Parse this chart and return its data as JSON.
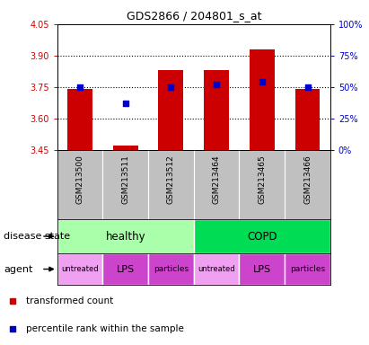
{
  "title": "GDS2866 / 204801_s_at",
  "samples": [
    "GSM213500",
    "GSM213511",
    "GSM213512",
    "GSM213464",
    "GSM213465",
    "GSM213466"
  ],
  "transformed_counts": [
    3.74,
    3.47,
    3.83,
    3.83,
    3.93,
    3.74
  ],
  "percentile_ranks": [
    50,
    37,
    50,
    52,
    54,
    50
  ],
  "ylim_left": [
    3.45,
    4.05
  ],
  "ylim_right": [
    0,
    100
  ],
  "yticks_left": [
    3.45,
    3.6,
    3.75,
    3.9,
    4.05
  ],
  "yticks_right": [
    0,
    25,
    50,
    75,
    100
  ],
  "disease_states": [
    {
      "label": "healthy",
      "span": [
        0,
        3
      ],
      "color": "#AAFFAA"
    },
    {
      "label": "COPD",
      "span": [
        3,
        6
      ],
      "color": "#00DD55"
    }
  ],
  "agents": [
    {
      "label": "untreated",
      "span": [
        0,
        1
      ],
      "color": "#F0A0F0"
    },
    {
      "label": "LPS",
      "span": [
        1,
        2
      ],
      "color": "#CC44CC"
    },
    {
      "label": "particles",
      "span": [
        2,
        3
      ],
      "color": "#CC44CC"
    },
    {
      "label": "untreated",
      "span": [
        3,
        4
      ],
      "color": "#F0A0F0"
    },
    {
      "label": "LPS",
      "span": [
        4,
        5
      ],
      "color": "#CC44CC"
    },
    {
      "label": "particles",
      "span": [
        5,
        6
      ],
      "color": "#CC44CC"
    }
  ],
  "bar_color": "#CC0000",
  "dot_color": "#0000CC",
  "bar_width": 0.55,
  "dot_size": 22,
  "background_samples": "#C0C0C0",
  "left_tick_color": "#CC0000",
  "right_tick_color": "#0000CC",
  "grid_linestyle": ":",
  "grid_linewidth": 0.8
}
